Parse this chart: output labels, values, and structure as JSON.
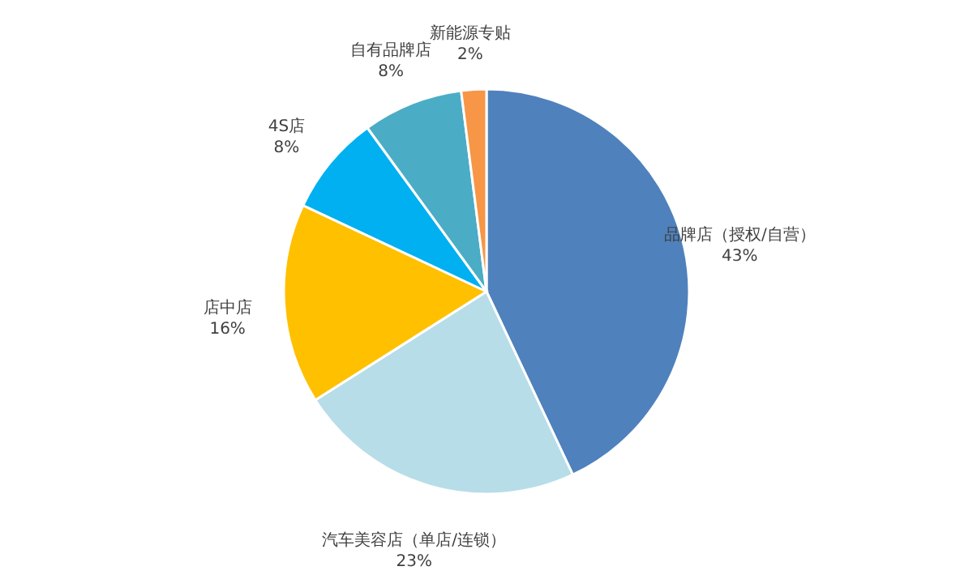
{
  "chart_data": {
    "type": "pie",
    "categories": [
      "品牌店（授权/自营）",
      "汽车美容店（单店/连锁）",
      "店中店",
      "4S店",
      "自有品牌店",
      "新能源专贴"
    ],
    "values": [
      43,
      23,
      16,
      8,
      8,
      2
    ],
    "value_labels": [
      "43%",
      "23%",
      "16%",
      "8%",
      "8%",
      "2%"
    ],
    "colors": [
      "#4f81bd",
      "#b7dde8",
      "#ffc000",
      "#00b0f0",
      "#4bacc6",
      "#f79646"
    ]
  }
}
